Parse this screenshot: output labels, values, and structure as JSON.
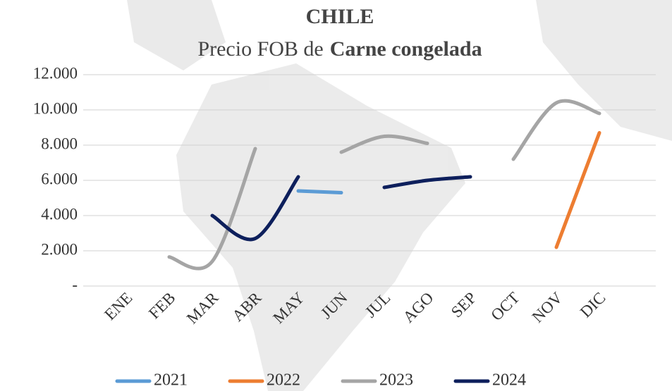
{
  "chart_data": {
    "type": "line",
    "title": "CHILE",
    "subtitle": {
      "text": "Precio FOB de",
      "emphasis": "Carne congelada"
    },
    "categories": [
      "ENE",
      "FEB",
      "MAR",
      "ABR",
      "MAY",
      "JUN",
      "JUL",
      "AGO",
      "SEP",
      "OCT",
      "NOV",
      "DIC"
    ],
    "series": [
      {
        "name": "2021",
        "color": "#5b9bd5",
        "values": [
          null,
          null,
          null,
          null,
          5400,
          5300,
          null,
          null,
          null,
          null,
          null,
          null
        ]
      },
      {
        "name": "2022",
        "color": "#ed7d31",
        "values": [
          null,
          null,
          null,
          null,
          null,
          null,
          null,
          null,
          null,
          null,
          2200,
          8700
        ]
      },
      {
        "name": "2023",
        "color": "#a5a5a5",
        "values": [
          null,
          1650,
          1400,
          7800,
          null,
          7600,
          8500,
          8100,
          null,
          7200,
          10400,
          9800
        ]
      },
      {
        "name": "2024",
        "color": "#0d1f5c",
        "values": [
          null,
          null,
          4000,
          2700,
          6200,
          null,
          5600,
          6000,
          6200,
          null,
          null,
          null
        ]
      }
    ],
    "ylim": [
      0,
      12000
    ],
    "yticks": [
      {
        "value": 0,
        "label": "-"
      },
      {
        "value": 2000,
        "label": "2.000"
      },
      {
        "value": 4000,
        "label": "4.000"
      },
      {
        "value": 6000,
        "label": "6.000"
      },
      {
        "value": 8000,
        "label": "8.000"
      },
      {
        "value": 10000,
        "label": "10.000"
      },
      {
        "value": 12000,
        "label": "12.000"
      }
    ],
    "grid": true,
    "legend": "bottom"
  }
}
